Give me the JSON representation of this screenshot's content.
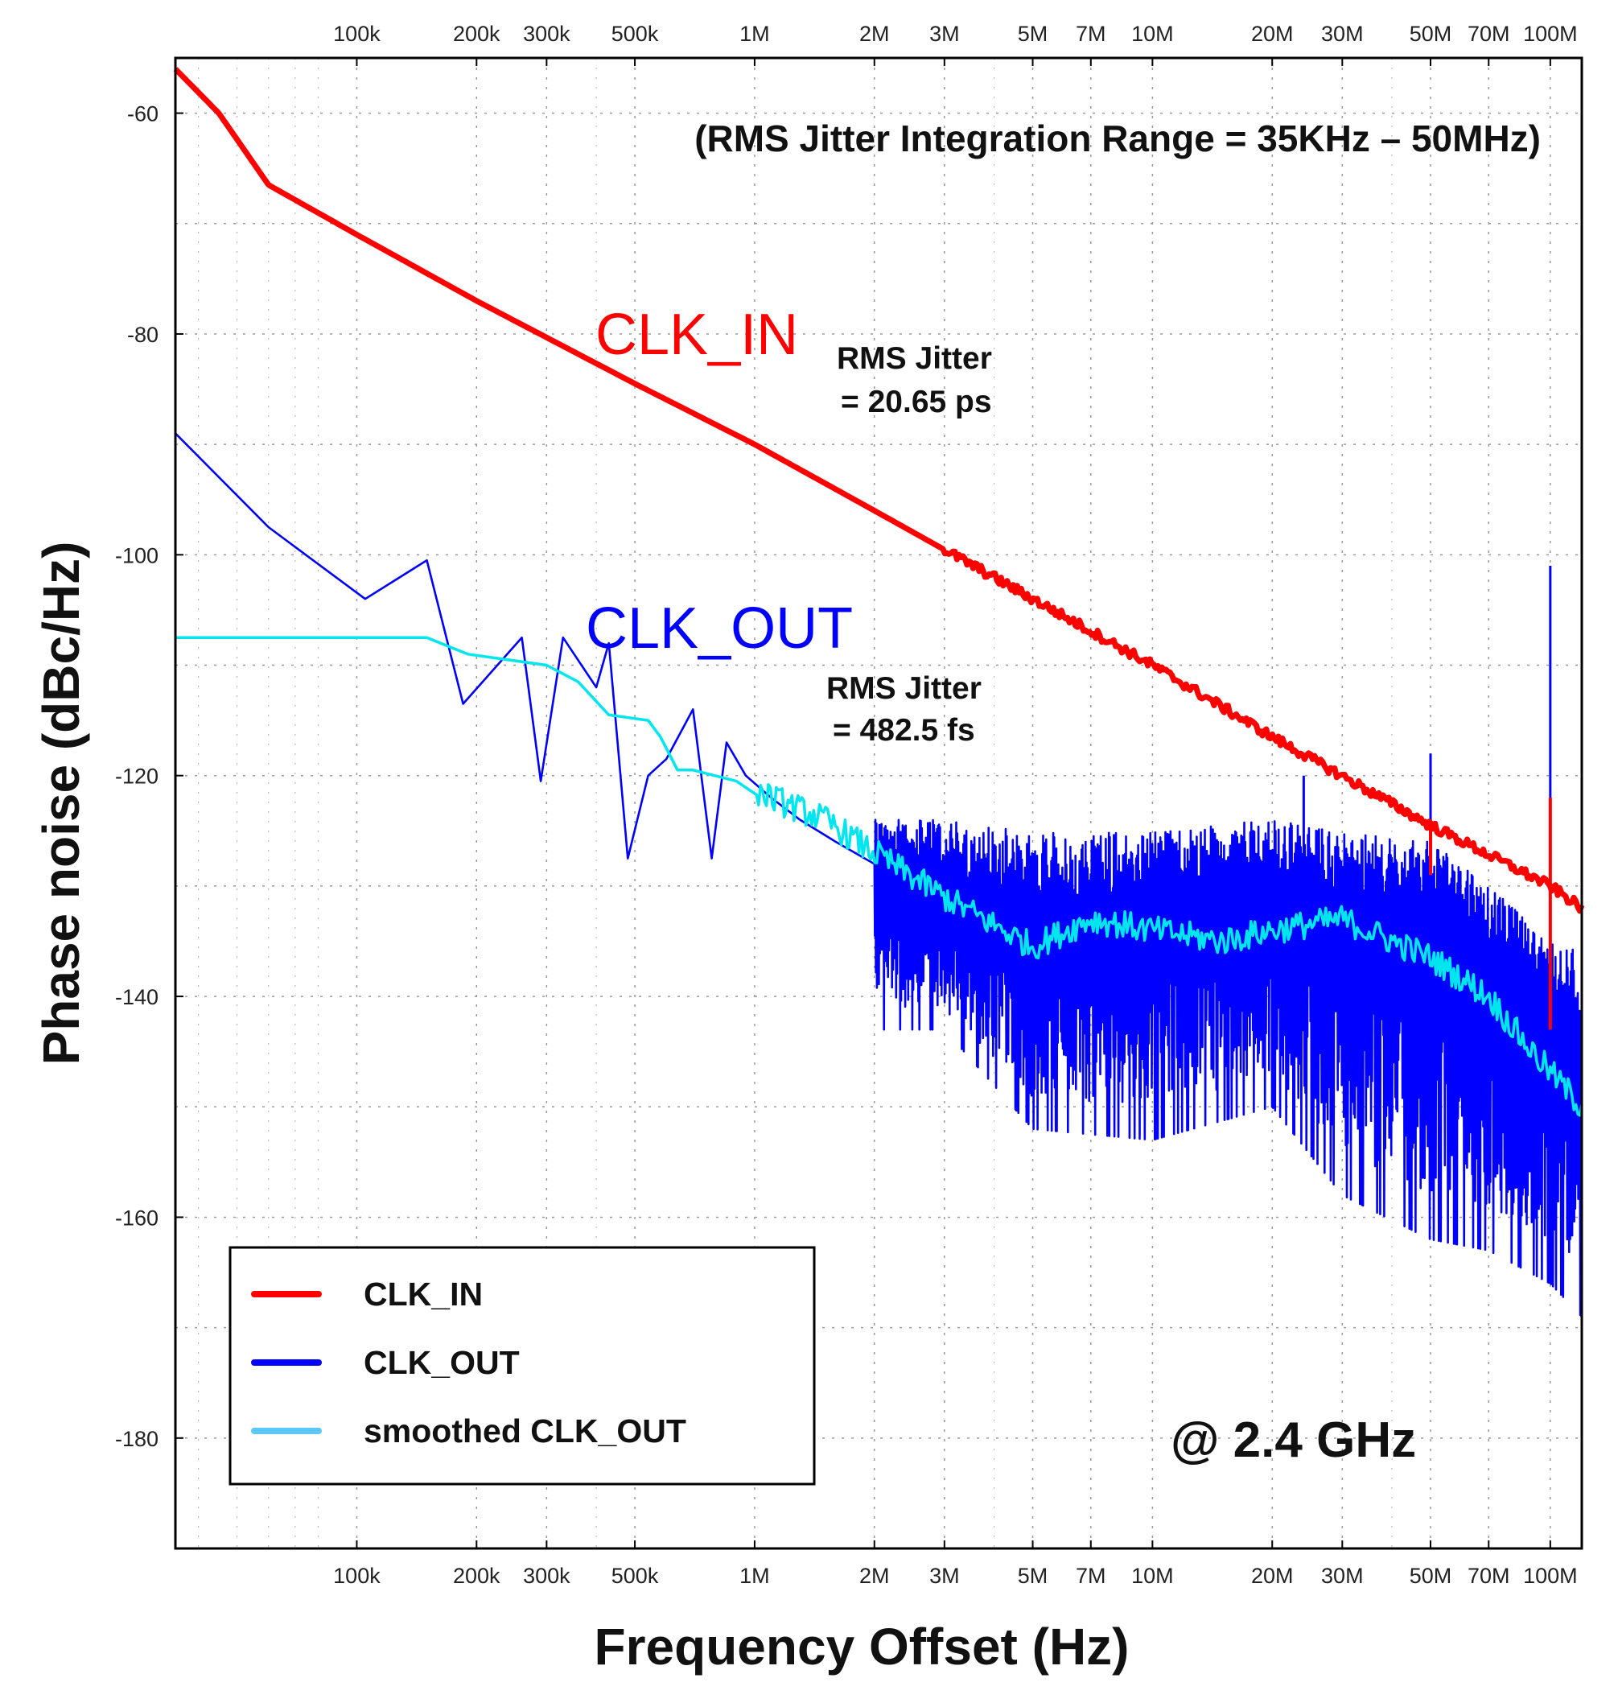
{
  "chart_data": {
    "type": "line",
    "title": "(RMS Jitter Integration Range = 35KHz – 50MHz)",
    "xlabel": "Frequency Offset (Hz)",
    "ylabel": "Phase noise (dBc/Hz)",
    "xscale": "log",
    "xlim": [
      35000,
      120000000
    ],
    "ylim": [
      -190,
      -55
    ],
    "grid": true,
    "x_tick_values": [
      100000,
      200000,
      300000,
      500000,
      1000000,
      2000000,
      3000000,
      5000000,
      7000000,
      10000000,
      20000000,
      30000000,
      50000000,
      70000000,
      100000000
    ],
    "x_tick_labels": [
      "100k",
      "200k",
      "300k",
      "500k",
      "1M",
      "2M",
      "3M",
      "5M",
      "7M",
      "10M",
      "20M",
      "30M",
      "50M",
      "70M",
      "100M"
    ],
    "y_ticks": [
      -60,
      -80,
      -100,
      -120,
      -140,
      -160,
      -180
    ],
    "y_tick_labels": [
      "-60",
      "-80",
      "-100",
      "-120",
      "-140",
      "-160",
      "-180"
    ],
    "frequency_label": "@ 2.4 GHz",
    "series": [
      {
        "name": "CLK_IN",
        "color": "#ff0000",
        "label": "CLK_IN",
        "jitter_lines": [
          "RMS Jitter",
          "= 20.65 ps"
        ],
        "x": [
          35000,
          45000,
          60000,
          100000,
          200000,
          500000,
          1000000,
          2000000,
          5000000,
          10000000,
          20000000,
          50000000,
          100000000,
          120000000
        ],
        "y": [
          -56,
          -60,
          -66.5,
          -71,
          -77,
          -84.5,
          -90,
          -96,
          -104,
          -110,
          -116.5,
          -124.5,
          -130,
          -132
        ],
        "spurs": [
          {
            "x": 50000000,
            "top": -124,
            "bottom": -129
          },
          {
            "x": 100000000,
            "top": -122,
            "bottom": -143
          }
        ]
      },
      {
        "name": "CLK_OUT",
        "color": "#0000ff",
        "label": "CLK_OUT",
        "jitter_lines": [
          "RMS Jitter",
          "= 482.5 fs"
        ],
        "x": [
          35000,
          60000,
          105000,
          150000,
          185000,
          260000,
          290000,
          330000,
          400000,
          430000,
          480000,
          540000,
          600000,
          700000,
          780000,
          850000,
          950000,
          1100000,
          1300000,
          1600000,
          2000000,
          3000000,
          5000000,
          10000000,
          20000000,
          30000000,
          50000000,
          100000000,
          120000000
        ],
        "y": [
          -89,
          -97.5,
          -104,
          -100.5,
          -113.5,
          -107.5,
          -120.5,
          -107.5,
          -112,
          -108,
          -127.5,
          -120,
          -118.5,
          -114,
          -127.5,
          -117,
          -120,
          -122,
          -124,
          -126,
          -128,
          -131,
          -135,
          -133,
          -131,
          -133,
          -134,
          -141,
          -147
        ],
        "noise_band": [
          {
            "x": 3000000,
            "top": -124,
            "bottom": -143
          },
          {
            "x": 5000000,
            "top": -125,
            "bottom": -152
          },
          {
            "x": 10000000,
            "top": -125,
            "bottom": -153
          },
          {
            "x": 20000000,
            "top": -124,
            "bottom": -150
          },
          {
            "x": 30000000,
            "top": -125,
            "bottom": -158
          },
          {
            "x": 50000000,
            "top": -126,
            "bottom": -162
          },
          {
            "x": 70000000,
            "top": -130,
            "bottom": -163
          },
          {
            "x": 100000000,
            "top": -135,
            "bottom": -166
          },
          {
            "x": 120000000,
            "top": -136,
            "bottom": -169
          }
        ],
        "spurs": [
          {
            "x": 24000000,
            "top": -120,
            "bottom": -131
          },
          {
            "x": 50000000,
            "top": -118,
            "bottom": -133
          },
          {
            "x": 100000000,
            "top": -101,
            "bottom": -130
          }
        ]
      },
      {
        "name": "smoothed CLK_OUT",
        "color": "#00e5ee",
        "x": [
          35000,
          150000,
          190000,
          300000,
          360000,
          430000,
          540000,
          580000,
          640000,
          700000,
          900000,
          1100000,
          1500000,
          2000000,
          3000000,
          5000000,
          7000000,
          10000000,
          15000000,
          20000000,
          30000000,
          40000000,
          50000000,
          70000000,
          90000000,
          120000000
        ],
        "y": [
          -107.5,
          -107.5,
          -109,
          -110,
          -111.5,
          -114.5,
          -115,
          -116.5,
          -119.5,
          -119.5,
          -120.5,
          -122,
          -124,
          -127,
          -131,
          -135.5,
          -133,
          -134,
          -135,
          -134,
          -133,
          -135,
          -136.5,
          -140,
          -145,
          -150
        ]
      }
    ],
    "legend": {
      "position": "bottom-left",
      "entries": [
        {
          "label": "CLK_IN",
          "color": "#ff0000"
        },
        {
          "label": "CLK_OUT",
          "color": "#0000ff"
        },
        {
          "label": "smoothed CLK_OUT",
          "color": "#5bc8f5"
        }
      ]
    }
  }
}
